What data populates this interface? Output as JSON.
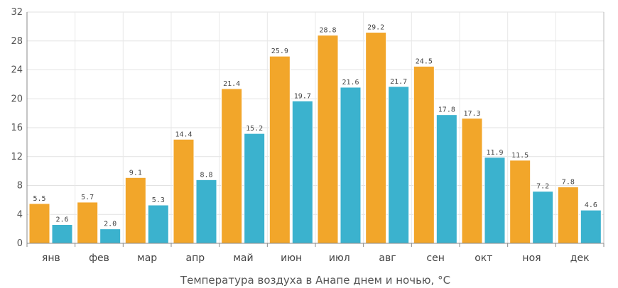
{
  "chart_data": {
    "type": "bar",
    "categories": [
      "янв",
      "фев",
      "мар",
      "апр",
      "май",
      "июн",
      "июл",
      "авг",
      "сен",
      "окт",
      "ноя",
      "дек"
    ],
    "series": [
      {
        "values": [
          5.5,
          5.7,
          9.1,
          14.4,
          21.4,
          25.9,
          28.8,
          29.2,
          24.5,
          17.3,
          11.5,
          7.8
        ],
        "color": "#f2a62a"
      },
      {
        "values": [
          2.6,
          2.0,
          5.3,
          8.8,
          15.2,
          19.7,
          21.6,
          21.7,
          17.8,
          11.9,
          7.2,
          4.6
        ],
        "color": "#3bb2ce"
      }
    ],
    "data_labels": [
      [
        "5.5",
        "5.7",
        "9.1",
        "14.4",
        "21.4",
        "25.9",
        "28.8",
        "29.2",
        "24.5",
        "17.3",
        "11.5",
        "7.8"
      ],
      [
        "2.6",
        "2.0",
        "5.3",
        "8.8",
        "15.2",
        "19.7",
        "21.6",
        "21.7",
        "17.8",
        "11.9",
        "7.2",
        "4.6"
      ]
    ],
    "yticks": [
      "0",
      "4",
      "8",
      "12",
      "16",
      "20",
      "24",
      "28",
      "32"
    ],
    "ylim": [
      0,
      32
    ],
    "xlabel": "Температура воздуха в Анапе днем и ночью, °С",
    "ylabel": "",
    "grid": true,
    "legend": "none"
  }
}
